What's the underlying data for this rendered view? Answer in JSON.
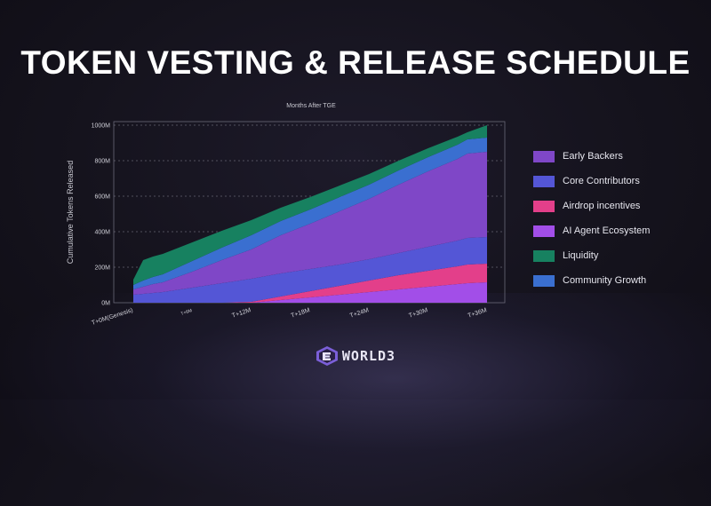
{
  "page": {
    "title": "TOKEN VESTING & RELEASE SCHEDULE",
    "logo_text": "WORLD3"
  },
  "chart_data": {
    "type": "area",
    "stacked": true,
    "title": "Months After TGE",
    "xlabel": "",
    "ylabel": "Cumulative Tokens Released",
    "xlim": [
      0,
      36
    ],
    "ylim": [
      0,
      1000
    ],
    "y_unit": "M",
    "x_ticks": [
      {
        "value": 0,
        "label": "T+0M(Genesis)"
      },
      {
        "value": 6,
        "label": "T+6M"
      },
      {
        "value": 12,
        "label": "T+12M"
      },
      {
        "value": 18,
        "label": "T+18M"
      },
      {
        "value": 24,
        "label": "T+24M"
      },
      {
        "value": 30,
        "label": "T+30M"
      },
      {
        "value": 36,
        "label": "T+36M"
      }
    ],
    "y_ticks": [
      {
        "value": 0,
        "label": "0M"
      },
      {
        "value": 200,
        "label": "200M"
      },
      {
        "value": 400,
        "label": "400M"
      },
      {
        "value": 600,
        "label": "600M"
      },
      {
        "value": 800,
        "label": "800M"
      },
      {
        "value": 1000,
        "label": "1000M"
      }
    ],
    "grid": true,
    "legend_position": "right",
    "x": [
      0,
      1,
      2,
      3,
      6,
      9,
      12,
      15,
      18,
      21,
      24,
      27,
      30,
      33,
      34,
      36
    ],
    "series": [
      {
        "name": "AI Agent Ecosystem",
        "color": "#a24ee8",
        "values": [
          0,
          0,
          0,
          0,
          0,
          0,
          0,
          15,
          30,
          45,
          60,
          75,
          90,
          105,
          110,
          115
        ]
      },
      {
        "name": "Airdrop incentives",
        "color": "#e33f8a",
        "values": [
          0,
          0,
          0,
          0,
          0,
          0,
          5,
          20,
          35,
          50,
          65,
          80,
          90,
          100,
          105,
          105
        ]
      },
      {
        "name": "Core Contributors",
        "color": "#5456d6",
        "values": [
          45,
          50,
          55,
          60,
          85,
          110,
          130,
          130,
          125,
          120,
          120,
          125,
          135,
          145,
          150,
          150
        ]
      },
      {
        "name": "Early Backers",
        "color": "#7f47c7",
        "values": [
          30,
          40,
          50,
          55,
          90,
          130,
          165,
          215,
          255,
          300,
          340,
          385,
          425,
          460,
          475,
          480
        ]
      },
      {
        "name": "Community Growth",
        "color": "#3a6fd0",
        "values": [
          25,
          35,
          40,
          45,
          60,
          70,
          80,
          80,
          80,
          80,
          80,
          80,
          80,
          80,
          80,
          80
        ]
      },
      {
        "name": "Liquidity",
        "color": "#178160",
        "values": [
          30,
          115,
          115,
          115,
          105,
          95,
          85,
          75,
          70,
          65,
          60,
          55,
          50,
          45,
          40,
          70
        ]
      }
    ],
    "legend_order": [
      "Early Backers",
      "Core Contributors",
      "Airdrop incentives",
      "AI Agent Ecosystem",
      "Liquidity",
      "Community Growth"
    ]
  }
}
